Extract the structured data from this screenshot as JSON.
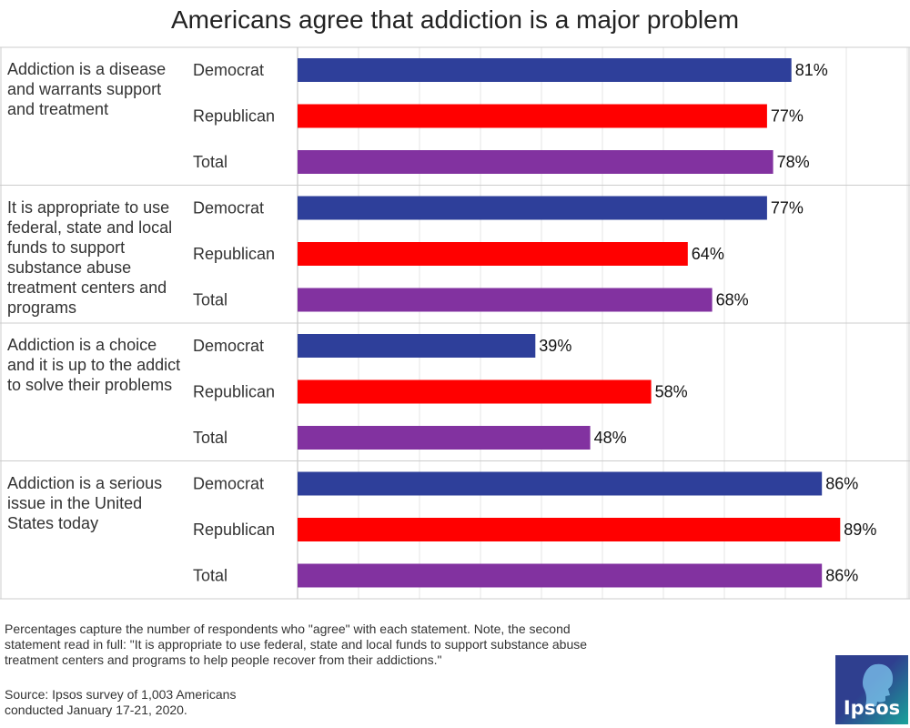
{
  "title": "Americans agree that addiction is a major problem",
  "colors": {
    "Democrat": "#2e3f9a",
    "Republican": "#ff0000",
    "Total": "#8232a0",
    "grid": "#e6e6e6",
    "divider": "#cccccc"
  },
  "chart_data": {
    "type": "bar",
    "orientation": "horizontal",
    "title": "Americans agree that addiction is a major problem",
    "xlim": [
      0,
      100
    ],
    "value_suffix": "%",
    "series_names": [
      "Democrat",
      "Republican",
      "Total"
    ],
    "groups": [
      {
        "label": "Addiction is a disease and warrants support and treatment",
        "bars": [
          {
            "name": "Democrat",
            "value": 81
          },
          {
            "name": "Republican",
            "value": 77
          },
          {
            "name": "Total",
            "value": 78
          }
        ]
      },
      {
        "label": "It is appropriate to use federal, state and local funds to support substance abuse treatment centers and programs",
        "bars": [
          {
            "name": "Democrat",
            "value": 77
          },
          {
            "name": "Republican",
            "value": 64
          },
          {
            "name": "Total",
            "value": 68
          }
        ]
      },
      {
        "label": "Addiction is a choice and it is up to the addict to solve their problems",
        "bars": [
          {
            "name": "Democrat",
            "value": 39
          },
          {
            "name": "Republican",
            "value": 58
          },
          {
            "name": "Total",
            "value": 48
          }
        ]
      },
      {
        "label": "Addiction is a serious issue in the United States today",
        "bars": [
          {
            "name": "Democrat",
            "value": 86
          },
          {
            "name": "Republican",
            "value": 89
          },
          {
            "name": "Total",
            "value": 86
          }
        ]
      }
    ]
  },
  "footnote": "Percentages capture the number of respondents who \"agree\" with each statement. Note, the second statement read in full: \"It is appropriate to use federal, state and local funds to support substance abuse treatment centers and programs to help people recover from their addictions.\"",
  "source": "Source: Ipsos survey of 1,003 Americans conducted January 17-21, 2020.",
  "logo_text": "Ipsos"
}
